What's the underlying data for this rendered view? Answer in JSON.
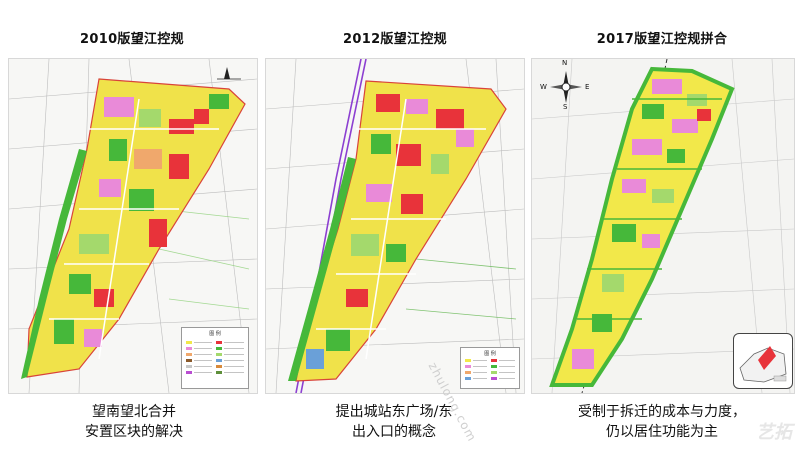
{
  "panels": [
    {
      "title": "2010版望江控规",
      "caption_line1": "望南望北合并",
      "caption_line2": "安置区块的解决",
      "legend_title": "图 例"
    },
    {
      "title": "2012版望江控规",
      "caption_line1": "提出城站东广场/东",
      "caption_line2": "出入口的概念",
      "legend_title": "图 例"
    },
    {
      "title": "2017版望江控规拼合",
      "caption_line1": "受制于拆迁的成本与力度，",
      "caption_line2": "仍以居住功能为主"
    }
  ],
  "compass": {
    "north": "N",
    "south": "S",
    "east": "E",
    "west": "W"
  },
  "watermark": "zhulong.com",
  "brand": "艺拓",
  "colors": {
    "residential": "#f2e84a",
    "commercial": "#e8333a",
    "public": "#e98ad8",
    "green": "#46b83a",
    "light_green": "#a4d96c",
    "school": "#f0a86c",
    "road": "#ffffff",
    "boundary": "#d9443a"
  }
}
